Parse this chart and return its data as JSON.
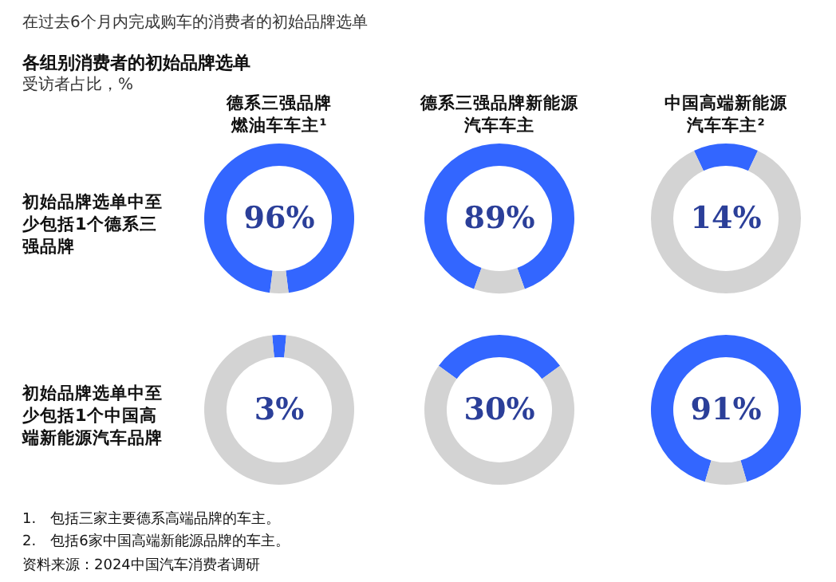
{
  "chart_data": [
    {
      "type": "other",
      "title": "各组别消费者的初始品牌选单",
      "subtitle": "受访者占比，%",
      "annotations": [
        "在过去6个月内完成购车的消费者的初始品牌选单",
        "德系三强品牌燃油车车主¹",
        "德系三强品牌新能源汽车车主",
        "中国高端新能源汽车车主²",
        "初始品牌选单中至少包括1个德系三强品牌",
        "初始品牌选单中至少包括1个中国高端新能源汽车品牌",
        "1.　包括三家主要德系高端品牌的车主。",
        "2.　包括6家中国高端新能源品牌的车主。",
        "资料来源：2024中国汽车消费者调研"
      ]
    },
    {
      "type": "donut",
      "categories": [
        null,
        null
      ],
      "values": [
        96,
        4
      ],
      "colors": [
        "#3366ff",
        "#d3d3d3"
      ],
      "value_labels": [
        "96%",
        null
      ]
    },
    {
      "type": "donut",
      "categories": [
        null,
        null
      ],
      "values": [
        89,
        11
      ],
      "colors": [
        "#3366ff",
        "#d3d3d3"
      ],
      "value_labels": [
        "89%",
        null
      ]
    },
    {
      "type": "donut",
      "categories": [
        null,
        null
      ],
      "values": [
        14,
        86
      ],
      "colors": [
        "#3366ff",
        "#d3d3d3"
      ],
      "value_labels": [
        "14%",
        null
      ]
    },
    {
      "type": "donut",
      "categories": [
        null,
        null
      ],
      "values": [
        3,
        97
      ],
      "colors": [
        "#3366ff",
        "#d3d3d3"
      ],
      "value_labels": [
        "3%",
        null
      ]
    },
    {
      "type": "donut",
      "categories": [
        null,
        null
      ],
      "values": [
        30,
        70
      ],
      "colors": [
        "#3366ff",
        "#d3d3d3"
      ],
      "value_labels": [
        "30%",
        null
      ]
    },
    {
      "type": "donut",
      "categories": [
        null,
        null
      ],
      "values": [
        91,
        9
      ],
      "colors": [
        "#3366ff",
        "#d3d3d3"
      ],
      "value_labels": [
        "91%",
        null
      ]
    }
  ]
}
